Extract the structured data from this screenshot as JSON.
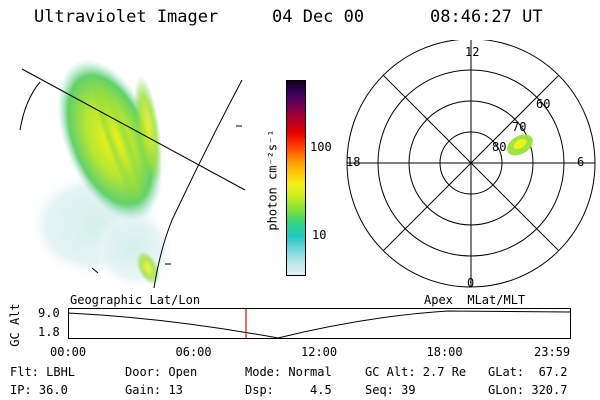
{
  "header": {
    "instrument": "Ultraviolet Imager",
    "date": "04 Dec 00",
    "time": "08:46:27 UT"
  },
  "image_panel": {
    "label": "Geographic Lat/Lon",
    "glow_color": "#7fd24a"
  },
  "colorbar": {
    "unit_label": "photon cm⁻²s⁻¹",
    "tick_100": "100",
    "tick_10": "10",
    "scale": "log",
    "colors": [
      "#e8f0f4",
      "#b8e4ea",
      "#6fd8d8",
      "#22c6c0",
      "#32d47e",
      "#7fe03c",
      "#c6ec22",
      "#f4f018",
      "#ffc20a",
      "#ff8a00",
      "#ff3a00",
      "#e40000",
      "#b0002a",
      "#7a0050",
      "#3c0060",
      "#10001a"
    ]
  },
  "polar_plot": {
    "label": "Apex  MLat/MLT",
    "mlt_12": "12",
    "mlt_18": "18",
    "mlt_6": "6",
    "mlt_0": "0",
    "lat_60": "60",
    "lat_70": "70",
    "lat_80": "80"
  },
  "timeline": {
    "ylabel": "GC Alt",
    "ytick_top": "9.0",
    "ytick_bottom": "1.8",
    "x_ticks": [
      "00:00",
      "06:00",
      "12:00",
      "18:00",
      "23:59"
    ],
    "current_time_color": "#d01010"
  },
  "info": {
    "filter": "Flt: LBHL",
    "door": "Door: Open",
    "mode": "Mode: Normal",
    "gc_alt": "GC Alt: 2.7 Re",
    "glat": "GLat:  67.2",
    "ip": "IP: 36.0",
    "gain": "Gain: 13",
    "dsp": "Dsp:     4.5",
    "seq": "Seq: 39",
    "glon": "GLon: 320.7"
  }
}
